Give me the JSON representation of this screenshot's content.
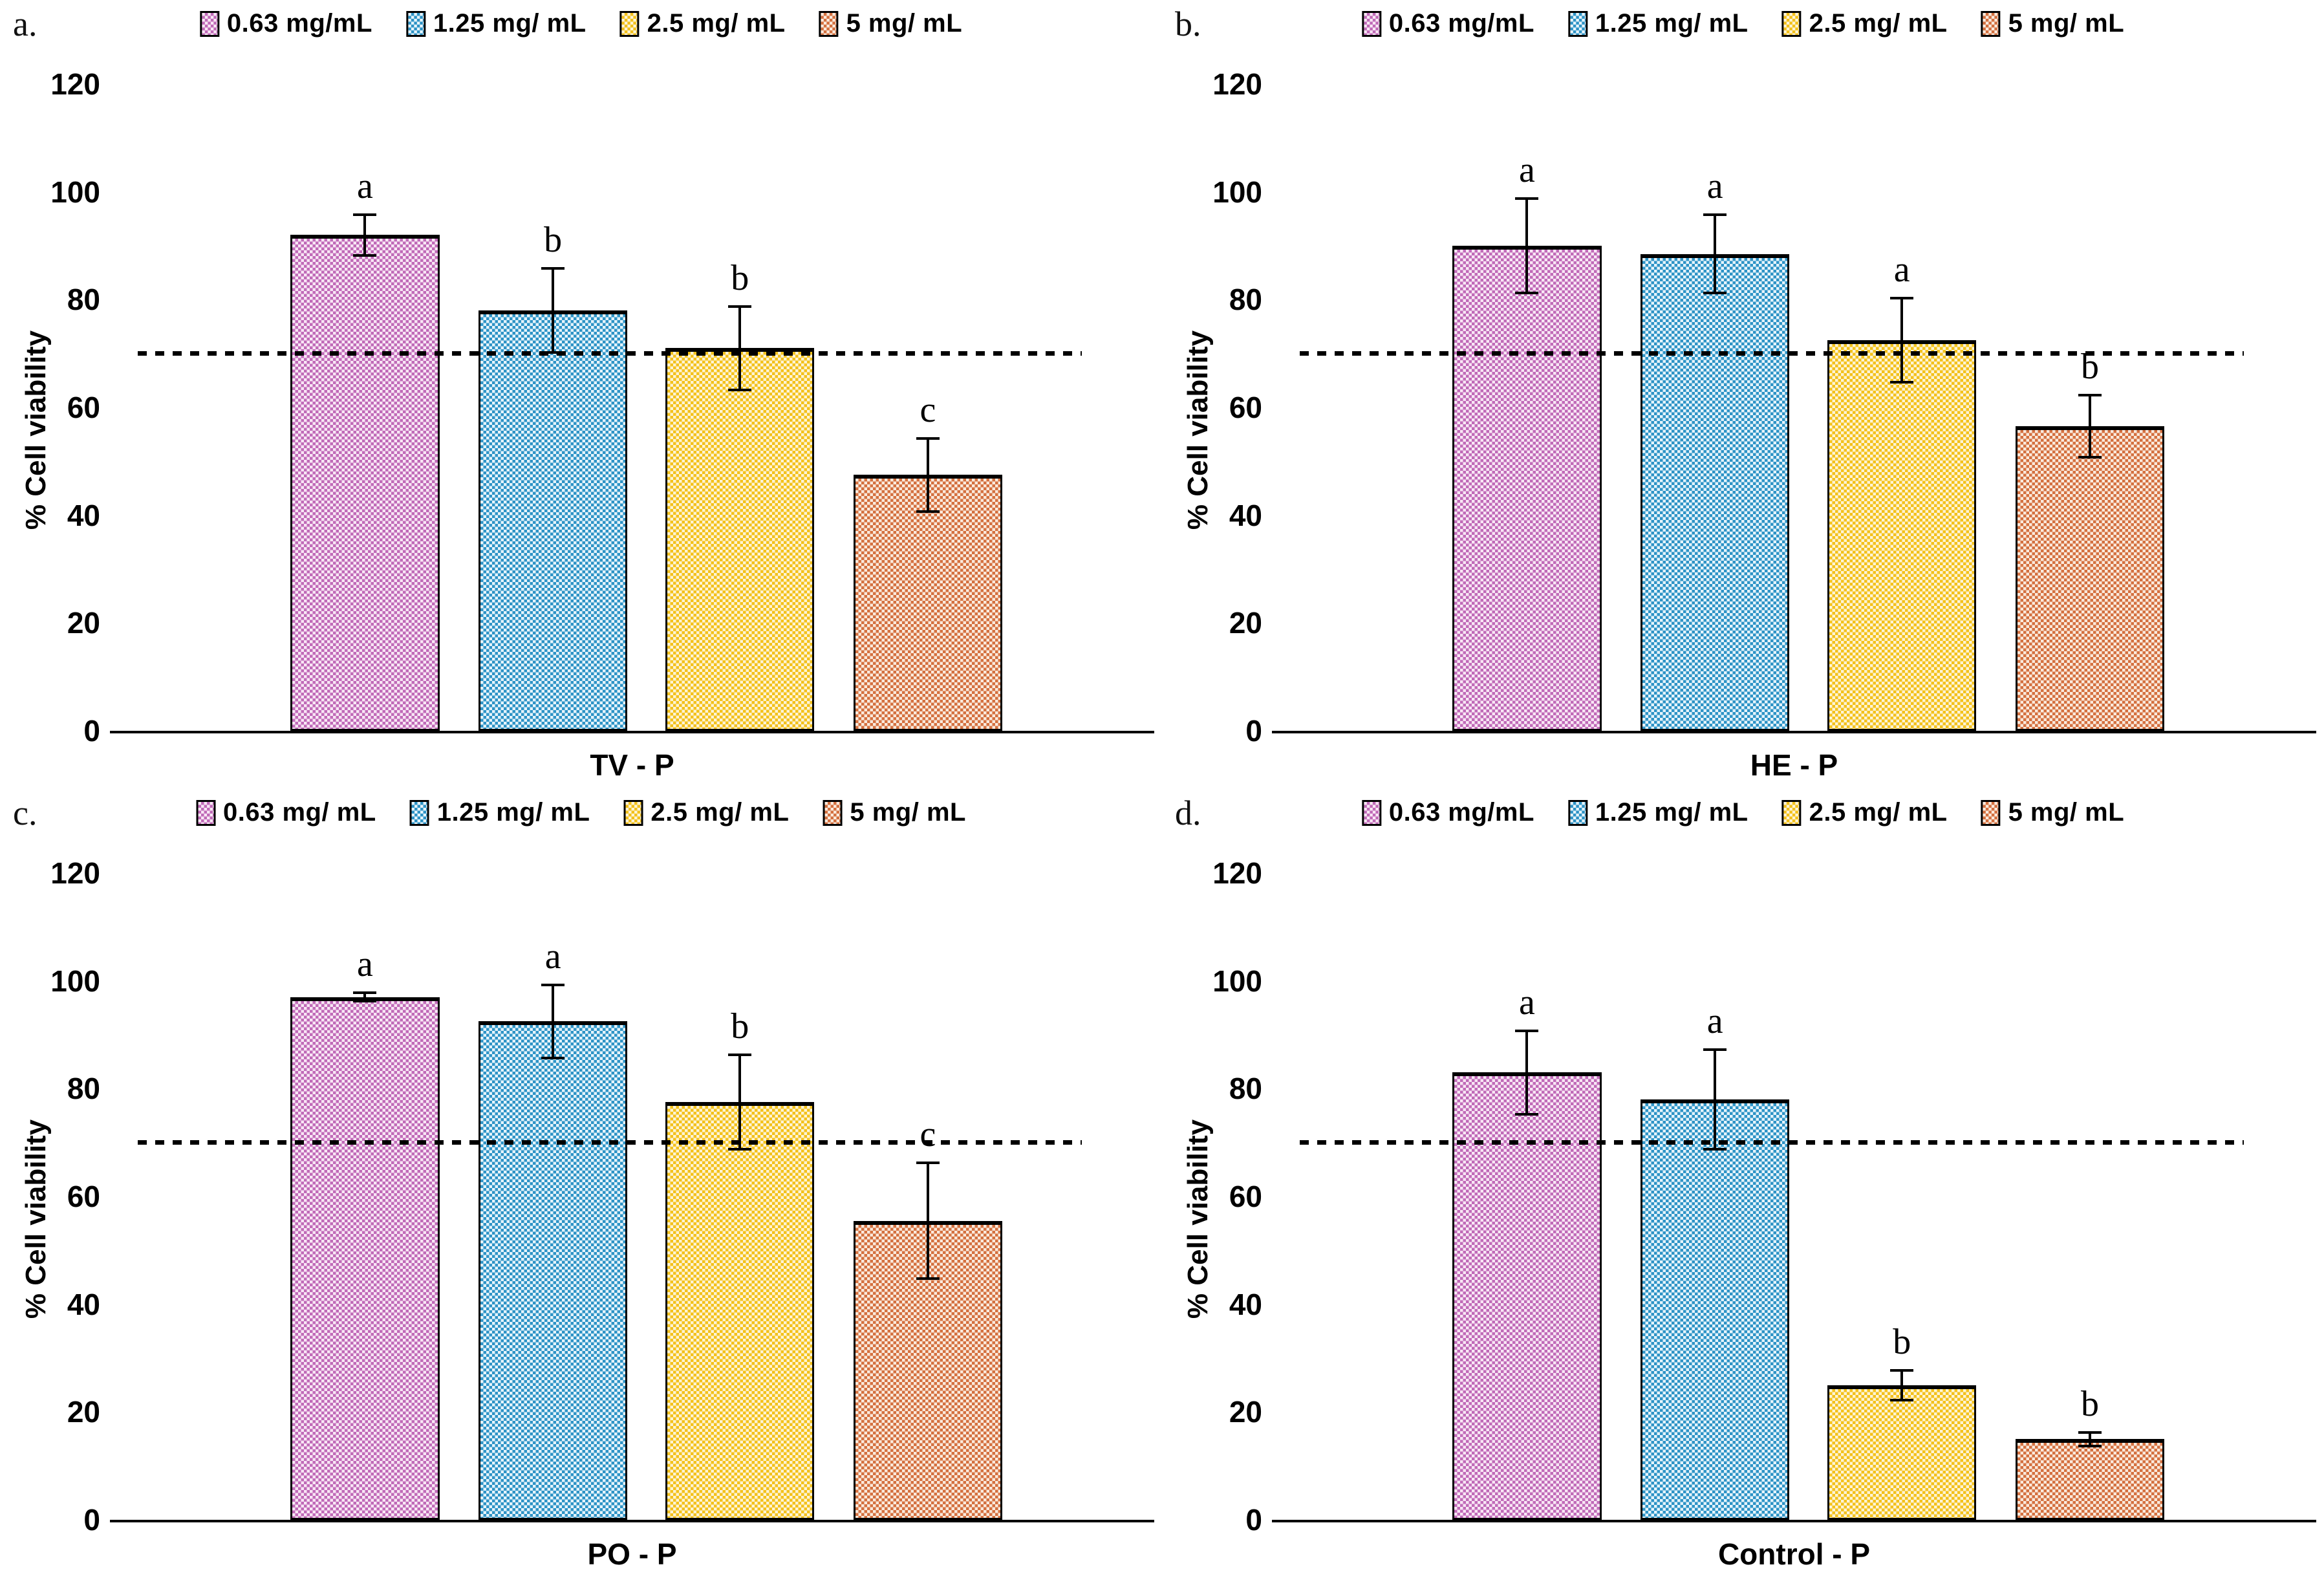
{
  "style": {
    "bar_colors": [
      "#c06ab8",
      "#2d93c6",
      "#f3c11b",
      "#d4703f"
    ],
    "bar_tints": [
      "#f8e7f5",
      "#e6f4fb",
      "#fdf4d6",
      "#faeadd"
    ],
    "threshold_color": "#000000",
    "axis_color": "#000000"
  },
  "chart_data": [
    {
      "type": "bar",
      "panel_label": "a.",
      "xlabel": "TV - P",
      "ylabel": "% Cell viability",
      "ylim": [
        0,
        120
      ],
      "yticks": [
        0,
        20,
        40,
        60,
        80,
        100,
        120
      ],
      "threshold_line": 70,
      "grid": false,
      "legend_position": "top",
      "legend": [
        "0.63 mg/mL",
        "1.25 mg/ mL",
        "2.5 mg/ mL",
        "5 mg/ mL"
      ],
      "categories": [
        "0.63 mg/mL",
        "1.25 mg/ mL",
        "2.5 mg/ mL",
        "5 mg/ mL"
      ],
      "values": [
        92,
        78,
        71,
        47.5
      ],
      "errors": [
        4,
        8,
        8,
        7
      ],
      "sig_letters": [
        "a",
        "b",
        "b",
        "c"
      ]
    },
    {
      "type": "bar",
      "panel_label": "b.",
      "xlabel": "HE - P",
      "ylabel": "% Cell viability",
      "ylim": [
        0,
        120
      ],
      "yticks": [
        0,
        20,
        40,
        60,
        80,
        100,
        120
      ],
      "threshold_line": 70,
      "grid": false,
      "legend_position": "top",
      "legend": [
        "0.63 mg/mL",
        "1.25 mg/ mL",
        "2.5 mg/ mL",
        "5 mg/ mL"
      ],
      "categories": [
        "0.63 mg/mL",
        "1.25 mg/ mL",
        "2.5 mg/ mL",
        "5 mg/ mL"
      ],
      "values": [
        90,
        88.5,
        72.5,
        56.5
      ],
      "errors": [
        9,
        7.5,
        8,
        6
      ],
      "sig_letters": [
        "a",
        "a",
        "a",
        "b"
      ]
    },
    {
      "type": "bar",
      "panel_label": "c.",
      "xlabel": "PO - P",
      "ylabel": "% Cell viability",
      "ylim": [
        0,
        120
      ],
      "yticks": [
        0,
        20,
        40,
        60,
        80,
        100,
        120
      ],
      "threshold_line": 70,
      "grid": false,
      "legend_position": "top",
      "legend": [
        "0.63 mg/ mL",
        "1.25 mg/ mL",
        "2.5 mg/ mL",
        "5 mg/ mL"
      ],
      "categories": [
        "0.63 mg/ mL",
        "1.25 mg/ mL",
        "2.5 mg/ mL",
        "5 mg/ mL"
      ],
      "values": [
        97,
        92.5,
        77.5,
        55.5
      ],
      "errors": [
        1,
        7,
        9,
        11
      ],
      "sig_letters": [
        "a",
        "a",
        "b",
        "c"
      ]
    },
    {
      "type": "bar",
      "panel_label": "d.",
      "xlabel": "Control - P",
      "ylabel": "% Cell viability",
      "ylim": [
        0,
        120
      ],
      "yticks": [
        0,
        20,
        40,
        60,
        80,
        100,
        120
      ],
      "threshold_line": 70,
      "grid": false,
      "legend_position": "top",
      "legend": [
        "0.63 mg/mL",
        "1.25 mg/ mL",
        "2.5 mg/ mL",
        "5 mg/ mL"
      ],
      "categories": [
        "0.63 mg/mL",
        "1.25 mg/ mL",
        "2.5 mg/ mL",
        "5 mg/ mL"
      ],
      "values": [
        83,
        78,
        25,
        15
      ],
      "errors": [
        8,
        9.5,
        3,
        1.5
      ],
      "sig_letters": [
        "a",
        "a",
        "b",
        "b"
      ]
    }
  ]
}
